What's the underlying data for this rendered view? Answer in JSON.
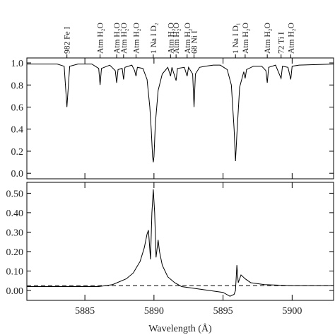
{
  "chart_data": [
    {
      "type": "line",
      "xlim": [
        5880.8,
        5903
      ],
      "xticks": [
        5885,
        5890,
        5895,
        5900
      ],
      "ylim": [
        -0.05,
        1.045
      ],
      "yticks": [
        {
          "value": 0,
          "label": "0.0"
        },
        0.2,
        0.4,
        0.6,
        0.8,
        {
          "value": 1,
          "label": "1.0"
        }
      ],
      "annotations": [
        {
          "text": "982 Fe I",
          "x": 5883.7
        },
        {
          "text": "Atm H₂O",
          "x": 5886.1
        },
        {
          "text": "Atm H₂O",
          "x": 5887.3
        },
        {
          "text": "Atm H₂O",
          "x": 5887.8
        },
        {
          "text": "Atm H₂O",
          "x": 5888.7
        },
        {
          "text": "1 Na I D₂",
          "x": 5889.95
        },
        {
          "text": "Atm H₂O",
          "x": 5891.2
        },
        {
          "text": "Atm H₂O",
          "x": 5891.6
        },
        {
          "text": "Atm H₂O",
          "x": 5892.4
        },
        {
          "text": "68 Ni I",
          "x": 5892.9
        },
        {
          "text": "1 Na I D₁",
          "x": 5895.9
        },
        {
          "text": "Atm H₂O",
          "x": 5896.6
        },
        {
          "text": "Atm H₂O",
          "x": 5898.2
        },
        {
          "text": "72 Ti I",
          "x": 5899.2
        },
        {
          "text": "Atm H₂O",
          "x": 5899.9
        }
      ],
      "color": "#000000",
      "x": [
        5880.8,
        5883.0,
        5883.5,
        5883.7,
        5883.9,
        5884.5,
        5885.5,
        5886.0,
        5886.1,
        5886.2,
        5886.8,
        5887.2,
        5887.3,
        5887.4,
        5887.7,
        5887.8,
        5887.9,
        5888.4,
        5888.6,
        5888.7,
        5888.8,
        5889.2,
        5889.5,
        5889.7,
        5889.8,
        5889.9,
        5889.95,
        5890.0,
        5890.1,
        5890.3,
        5890.6,
        5891.0,
        5891.2,
        5891.3,
        5891.6,
        5891.7,
        5892.2,
        5892.4,
        5892.5,
        5892.8,
        5892.9,
        5893.0,
        5893.3,
        5893.7,
        5894.3,
        5894.8,
        5895.3,
        5895.6,
        5895.8,
        5895.9,
        5896.0,
        5896.2,
        5896.5,
        5896.6,
        5896.7,
        5897.2,
        5897.8,
        5898.1,
        5898.2,
        5898.3,
        5898.8,
        5899.2,
        5899.3,
        5899.7,
        5899.9,
        5900.0,
        5900.5,
        5903.0
      ],
      "values": [
        0.99,
        0.99,
        0.97,
        0.6,
        0.97,
        0.99,
        0.99,
        0.95,
        0.8,
        0.95,
        0.98,
        0.93,
        0.82,
        0.94,
        0.95,
        0.85,
        0.96,
        0.98,
        0.93,
        0.88,
        0.96,
        0.95,
        0.85,
        0.6,
        0.4,
        0.15,
        0.1,
        0.15,
        0.45,
        0.75,
        0.9,
        0.96,
        0.88,
        0.96,
        0.84,
        0.95,
        0.96,
        0.88,
        0.96,
        0.9,
        0.6,
        0.9,
        0.96,
        0.97,
        0.98,
        0.98,
        0.94,
        0.8,
        0.4,
        0.11,
        0.35,
        0.78,
        0.92,
        0.86,
        0.94,
        0.97,
        0.97,
        0.93,
        0.82,
        0.96,
        0.98,
        0.86,
        0.97,
        0.96,
        0.85,
        0.97,
        0.98,
        0.99
      ]
    },
    {
      "type": "line",
      "xlim": [
        5880.8,
        5903
      ],
      "xticks": [
        5885,
        5890,
        5895,
        5900
      ],
      "ylim": [
        -0.051,
        0.556
      ],
      "yticks": [
        {
          "value": 0,
          "label": "0.00"
        },
        {
          "value": 0.1,
          "label": "0.10"
        },
        {
          "value": 0.2,
          "label": "0.20"
        },
        {
          "value": 0.3,
          "label": "0.30"
        },
        {
          "value": 0.4,
          "label": "0.40"
        },
        {
          "value": 0.5,
          "label": "0.50"
        }
      ],
      "xlabel": "Wavelength (Å)",
      "hline": 0.025,
      "color": "#000000",
      "x": [
        5880.8,
        5884.0,
        5886.0,
        5887.0,
        5888.0,
        5888.5,
        5889.0,
        5889.3,
        5889.5,
        5889.6,
        5889.75,
        5889.85,
        5889.95,
        5890.05,
        5890.15,
        5890.3,
        5890.4,
        5890.6,
        5891.0,
        5891.5,
        5892.0,
        5893.0,
        5894.0,
        5895.0,
        5895.5,
        5895.8,
        5895.9,
        5896.0,
        5896.1,
        5896.3,
        5896.6,
        5897.0,
        5898.0,
        5900.0,
        5903.0
      ],
      "values": [
        0.02,
        0.02,
        0.02,
        0.03,
        0.06,
        0.09,
        0.15,
        0.22,
        0.29,
        0.31,
        0.16,
        0.4,
        0.52,
        0.4,
        0.17,
        0.26,
        0.2,
        0.13,
        0.07,
        0.04,
        0.02,
        0.01,
        0.0,
        -0.01,
        -0.03,
        -0.02,
        0.0,
        0.13,
        0.04,
        0.08,
        0.06,
        0.04,
        0.03,
        0.025,
        0.025
      ]
    }
  ]
}
